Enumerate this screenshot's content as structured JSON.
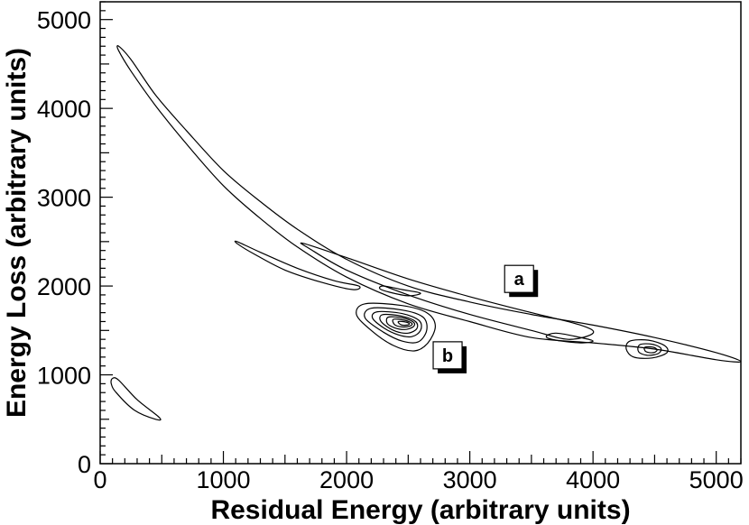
{
  "chart_data": {
    "type": "contour",
    "title": "",
    "xlabel": "Residual Energy (arbitrary units)",
    "ylabel": "Energy Loss (arbitrary units)",
    "xlim": [
      0,
      5200
    ],
    "ylim": [
      0,
      5200
    ],
    "x_ticks": [
      {
        "value": 0,
        "label": "0"
      },
      {
        "value": 1000,
        "label": "1000"
      },
      {
        "value": 2000,
        "label": "2000"
      },
      {
        "value": 3000,
        "label": "3000"
      },
      {
        "value": 4000,
        "label": "4000"
      },
      {
        "value": 5000,
        "label": "5000"
      }
    ],
    "y_ticks": [
      {
        "value": 0,
        "label": "0"
      },
      {
        "value": 1000,
        "label": "1000"
      },
      {
        "value": 2000,
        "label": "2000"
      },
      {
        "value": 3000,
        "label": "3000"
      },
      {
        "value": 4000,
        "label": "4000"
      },
      {
        "value": 5000,
        "label": "5000"
      }
    ],
    "grid": false,
    "contours": [
      {
        "name": "upper-band",
        "points": [
          [
            150,
            4700
          ],
          [
            250,
            4550
          ],
          [
            450,
            4150
          ],
          [
            700,
            3750
          ],
          [
            1000,
            3300
          ],
          [
            1300,
            2950
          ],
          [
            1600,
            2640
          ],
          [
            2000,
            2300
          ],
          [
            2500,
            2000
          ],
          [
            3000,
            1820
          ],
          [
            3500,
            1680
          ],
          [
            4000,
            1560
          ],
          [
            4500,
            1420
          ],
          [
            5000,
            1250
          ],
          [
            5200,
            1150
          ],
          [
            5000,
            1170
          ],
          [
            4500,
            1290
          ],
          [
            4000,
            1360
          ],
          [
            3500,
            1420
          ],
          [
            3000,
            1600
          ],
          [
            2500,
            1800
          ],
          [
            2000,
            2100
          ],
          [
            1600,
            2440
          ],
          [
            1300,
            2760
          ],
          [
            1000,
            3130
          ],
          [
            700,
            3600
          ],
          [
            450,
            4030
          ],
          [
            250,
            4420
          ],
          [
            150,
            4650
          ]
        ]
      },
      {
        "name": "band-a-inner",
        "points": [
          [
            1650,
            2480
          ],
          [
            2000,
            2320
          ],
          [
            2500,
            2080
          ],
          [
            3000,
            1880
          ],
          [
            3500,
            1700
          ],
          [
            3900,
            1560
          ],
          [
            4000,
            1470
          ],
          [
            3800,
            1400
          ],
          [
            3500,
            1500
          ],
          [
            3000,
            1680
          ],
          [
            2500,
            1900
          ],
          [
            2000,
            2180
          ],
          [
            1700,
            2420
          ]
        ]
      },
      {
        "name": "lower-left-band",
        "points": [
          [
            1110,
            2500
          ],
          [
            1300,
            2380
          ],
          [
            1600,
            2200
          ],
          [
            1900,
            2060
          ],
          [
            2100,
            2000
          ],
          [
            2050,
            1960
          ],
          [
            1800,
            2040
          ],
          [
            1500,
            2180
          ],
          [
            1250,
            2360
          ],
          [
            1120,
            2470
          ]
        ]
      },
      {
        "name": "small-island-a",
        "points": [
          [
            2300,
            2000
          ],
          [
            2450,
            1960
          ],
          [
            2600,
            1920
          ],
          [
            2500,
            1890
          ],
          [
            2350,
            1930
          ],
          [
            2270,
            1970
          ]
        ]
      },
      {
        "name": "b-outer",
        "points": [
          [
            2150,
            1800
          ],
          [
            2450,
            1780
          ],
          [
            2650,
            1700
          ],
          [
            2720,
            1550
          ],
          [
            2660,
            1360
          ],
          [
            2550,
            1270
          ],
          [
            2380,
            1330
          ],
          [
            2200,
            1500
          ],
          [
            2080,
            1680
          ]
        ]
      },
      {
        "name": "b-2",
        "points": [
          [
            2200,
            1750
          ],
          [
            2450,
            1730
          ],
          [
            2620,
            1650
          ],
          [
            2650,
            1500
          ],
          [
            2580,
            1370
          ],
          [
            2450,
            1380
          ],
          [
            2300,
            1480
          ],
          [
            2150,
            1640
          ]
        ]
      },
      {
        "name": "b-3",
        "points": [
          [
            2250,
            1710
          ],
          [
            2450,
            1690
          ],
          [
            2590,
            1610
          ],
          [
            2600,
            1500
          ],
          [
            2530,
            1430
          ],
          [
            2420,
            1450
          ],
          [
            2300,
            1530
          ],
          [
            2210,
            1640
          ]
        ]
      },
      {
        "name": "b-4",
        "points": [
          [
            2300,
            1680
          ],
          [
            2450,
            1660
          ],
          [
            2560,
            1600
          ],
          [
            2570,
            1520
          ],
          [
            2500,
            1470
          ],
          [
            2400,
            1490
          ],
          [
            2310,
            1560
          ],
          [
            2270,
            1630
          ]
        ]
      },
      {
        "name": "b-5",
        "points": [
          [
            2340,
            1650
          ],
          [
            2460,
            1640
          ],
          [
            2545,
            1590
          ],
          [
            2540,
            1540
          ],
          [
            2470,
            1510
          ],
          [
            2390,
            1530
          ],
          [
            2330,
            1580
          ]
        ]
      },
      {
        "name": "b-6",
        "points": [
          [
            2380,
            1625
          ],
          [
            2470,
            1615
          ],
          [
            2530,
            1580
          ],
          [
            2515,
            1550
          ],
          [
            2450,
            1540
          ],
          [
            2390,
            1565
          ]
        ]
      },
      {
        "name": "b-core",
        "points": [
          [
            2420,
            1600
          ],
          [
            2480,
            1595
          ],
          [
            2510,
            1575
          ],
          [
            2490,
            1560
          ],
          [
            2440,
            1565
          ]
        ]
      },
      {
        "name": "tail-island-1",
        "points": [
          [
            3700,
            1470
          ],
          [
            3900,
            1420
          ],
          [
            4000,
            1380
          ],
          [
            3900,
            1360
          ],
          [
            3700,
            1390
          ],
          [
            3620,
            1430
          ]
        ]
      },
      {
        "name": "right-island-outer",
        "points": [
          [
            4300,
            1380
          ],
          [
            4450,
            1390
          ],
          [
            4580,
            1330
          ],
          [
            4600,
            1250
          ],
          [
            4480,
            1190
          ],
          [
            4330,
            1200
          ],
          [
            4270,
            1290
          ]
        ]
      },
      {
        "name": "right-island-mid",
        "points": [
          [
            4380,
            1340
          ],
          [
            4480,
            1345
          ],
          [
            4550,
            1300
          ],
          [
            4530,
            1240
          ],
          [
            4440,
            1220
          ],
          [
            4370,
            1260
          ]
        ]
      },
      {
        "name": "right-island-inner",
        "points": [
          [
            4420,
            1310
          ],
          [
            4490,
            1310
          ],
          [
            4520,
            1280
          ],
          [
            4490,
            1250
          ],
          [
            4430,
            1260
          ]
        ]
      },
      {
        "name": "bottom-left-blob",
        "points": [
          [
            100,
            960
          ],
          [
            150,
            940
          ],
          [
            300,
            720
          ],
          [
            480,
            520
          ],
          [
            450,
            500
          ],
          [
            280,
            600
          ],
          [
            130,
            800
          ],
          [
            90,
            900
          ]
        ]
      }
    ],
    "annotations": [
      {
        "label": "a",
        "x": 3400,
        "y": 2080
      },
      {
        "label": "b",
        "x": 2820,
        "y": 1220
      }
    ]
  }
}
